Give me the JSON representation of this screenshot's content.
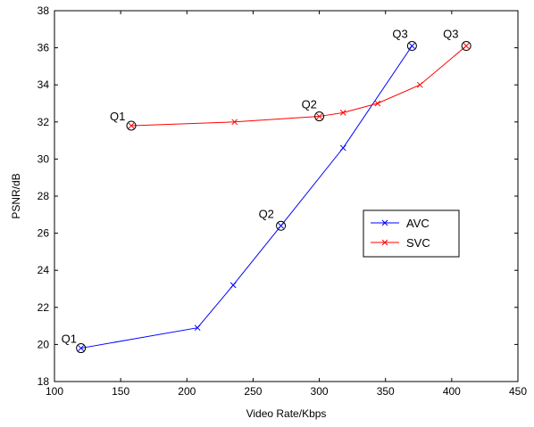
{
  "chart_data": {
    "type": "line",
    "title": "",
    "xlabel": "Video Rate/Kbps",
    "ylabel": "PSNR/dB",
    "xlim": [
      100,
      450
    ],
    "ylim": [
      18,
      38
    ],
    "xticks": [
      100,
      150,
      200,
      250,
      300,
      350,
      400,
      450
    ],
    "yticks": [
      18,
      20,
      22,
      24,
      26,
      28,
      30,
      32,
      34,
      36,
      38
    ],
    "grid": false,
    "legend": {
      "placement": "inside-right",
      "entries": [
        "AVC",
        "SVC"
      ]
    },
    "series": [
      {
        "name": "AVC",
        "color": "#0000ff",
        "marker": "x",
        "x": [
          120,
          208,
          235,
          271,
          318,
          370
        ],
        "y": [
          19.8,
          20.9,
          23.2,
          26.4,
          30.6,
          36.1
        ]
      },
      {
        "name": "SVC",
        "color": "#ff0000",
        "marker": "x",
        "x": [
          158,
          236,
          300,
          318,
          344,
          376,
          411
        ],
        "y": [
          31.8,
          32.0,
          32.3,
          32.5,
          33.0,
          34.0,
          36.1
        ]
      }
    ],
    "annotations": [
      {
        "text": "Q1",
        "series": "AVC",
        "x": 120,
        "y": 19.8,
        "circled": true
      },
      {
        "text": "Q2",
        "series": "AVC",
        "x": 271,
        "y": 26.4,
        "circled": true
      },
      {
        "text": "Q3",
        "series": "AVC",
        "x": 370,
        "y": 36.1,
        "circled": true
      },
      {
        "text": "Q1",
        "series": "SVC",
        "x": 158,
        "y": 31.8,
        "circled": true
      },
      {
        "text": "Q2",
        "series": "SVC",
        "x": 300,
        "y": 32.3,
        "circled": true
      },
      {
        "text": "Q3",
        "series": "SVC",
        "x": 411,
        "y": 36.1,
        "circled": true
      }
    ]
  }
}
